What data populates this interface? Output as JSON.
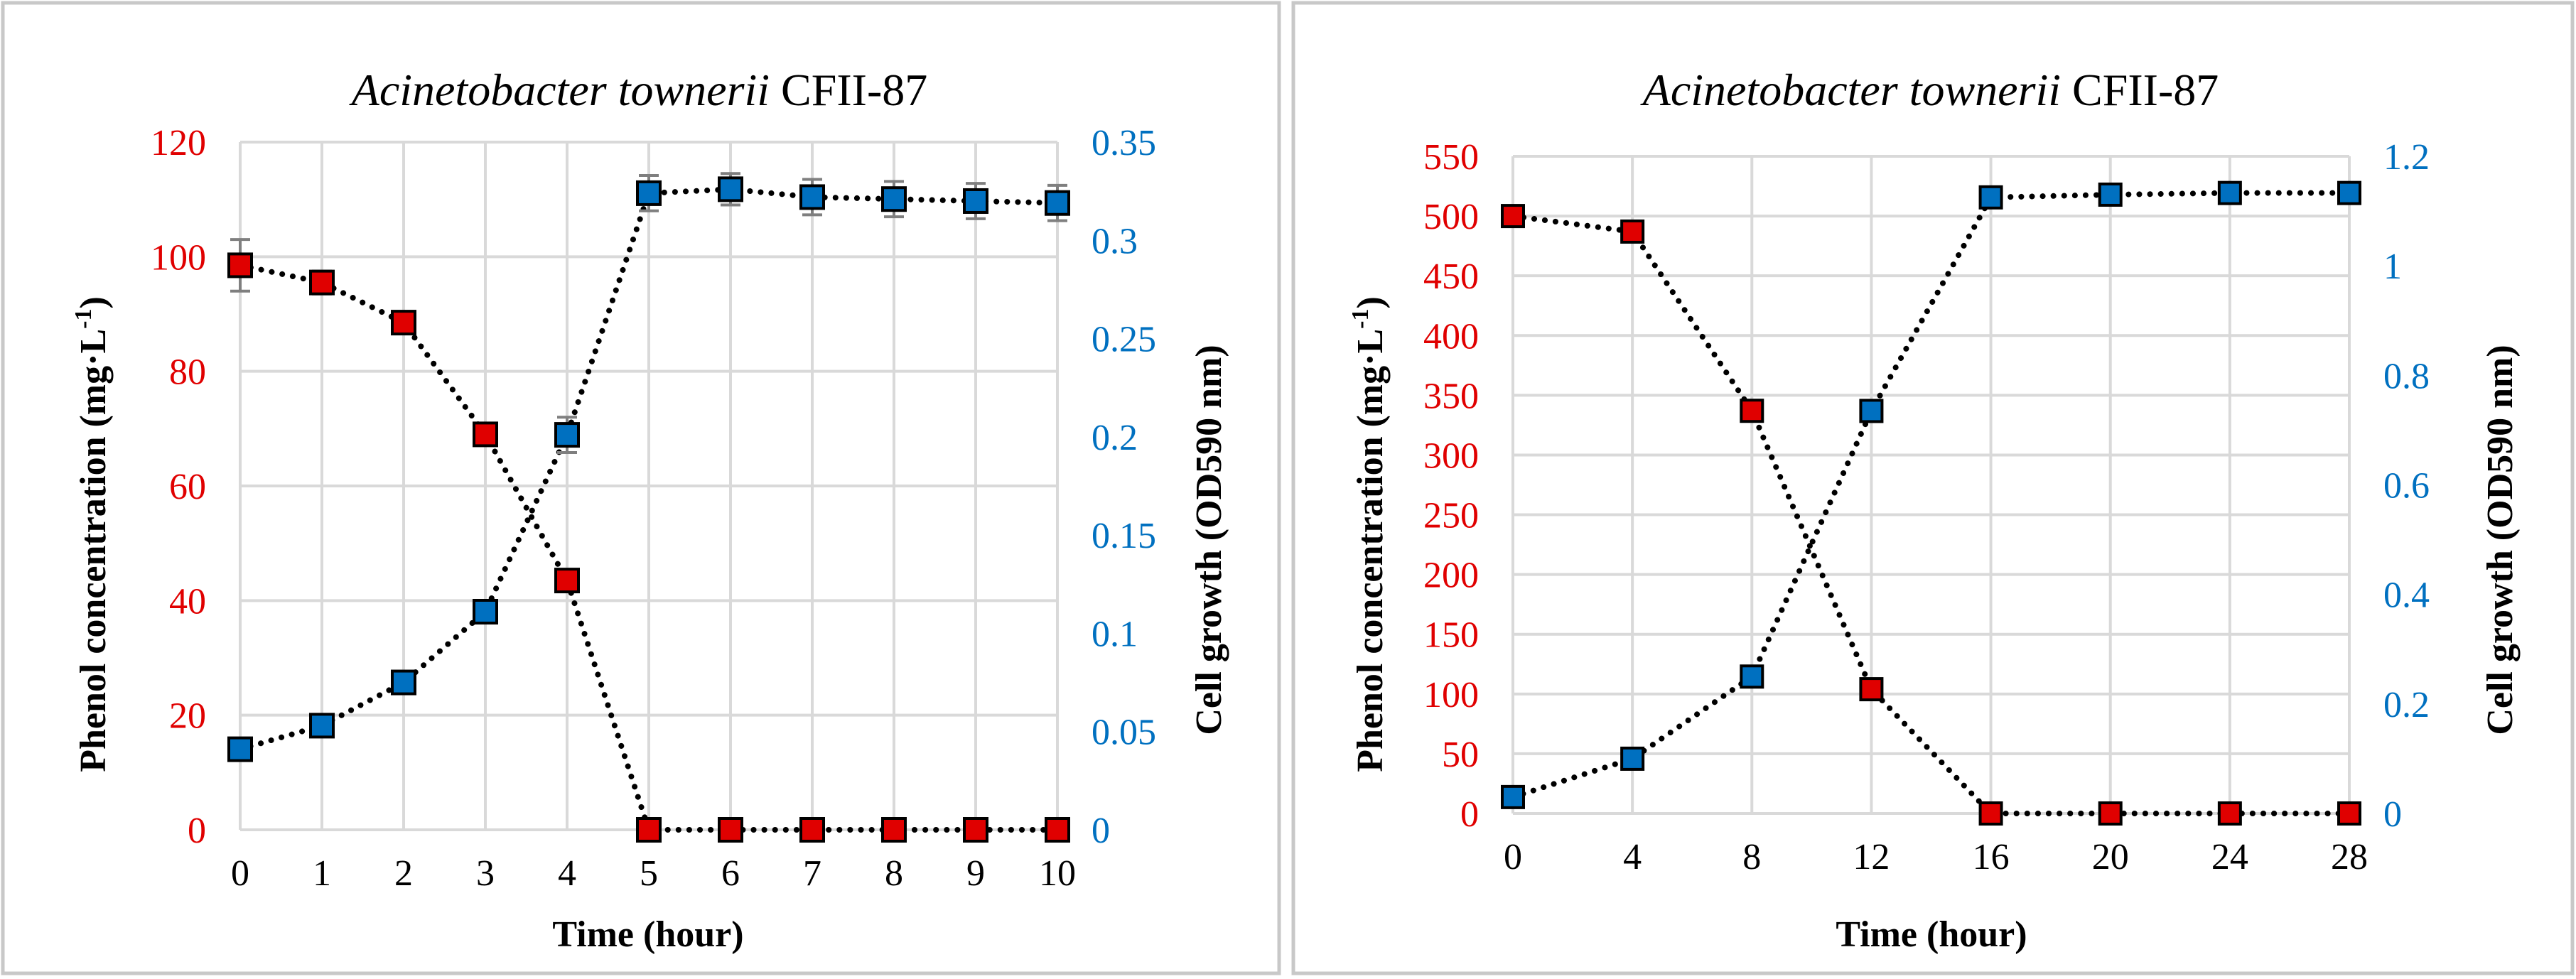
{
  "chart_data": [
    {
      "type": "line",
      "title_italic": "Acinetobacter townerii",
      "title_plain": " CFII-87",
      "xlabel": "Time (hour)",
      "ylabel_left_main": "Phenol concentration (mg·L",
      "ylabel_left_sup": "-1",
      "ylabel_left_tail": ")",
      "ylabel_right": "Cell growth (OD590 nm)",
      "x": [
        0,
        1,
        2,
        3,
        4,
        5,
        6,
        7,
        8,
        9,
        10
      ],
      "x_tick_labels": [
        "0",
        "1",
        "2",
        "3",
        "4",
        "5",
        "6",
        "7",
        "8",
        "9",
        "10"
      ],
      "xlim": [
        0,
        10
      ],
      "ylim_left": [
        0,
        120
      ],
      "y_left_tick_labels": [
        "0",
        "20",
        "40",
        "60",
        "80",
        "100",
        "120"
      ],
      "y_left_ticks": [
        0,
        20,
        40,
        60,
        80,
        100,
        120
      ],
      "ylim_right": [
        0,
        0.35
      ],
      "y_right_tick_labels": [
        "0",
        "0.05",
        "0.1",
        "0.15",
        "0.2",
        "0.25",
        "0.3",
        "0.35"
      ],
      "y_right_ticks": [
        0,
        0.05,
        0.1,
        0.15,
        0.2,
        0.25,
        0.3,
        0.35
      ],
      "series": [
        {
          "name": "Phenol concentration",
          "axis": "left",
          "color": "#e00000",
          "values": [
            98.5,
            95.5,
            88.5,
            69,
            43.5,
            0,
            0,
            0,
            0,
            0,
            0
          ],
          "errors": [
            4.5,
            2,
            1.5,
            1,
            1,
            0,
            0,
            0,
            0,
            0,
            0
          ]
        },
        {
          "name": "Cell growth",
          "axis": "right",
          "color": "#0070c0",
          "values": [
            0.041,
            0.053,
            0.075,
            0.111,
            0.201,
            0.324,
            0.326,
            0.322,
            0.321,
            0.32,
            0.319
          ],
          "errors": [
            0.003,
            0.003,
            0.003,
            0.003,
            0.009,
            0.009,
            0.008,
            0.009,
            0.009,
            0.009,
            0.009
          ]
        }
      ],
      "text_colors": {
        "left_ticks": "#e00000",
        "right_ticks": "#0070c0"
      }
    },
    {
      "type": "line",
      "title_italic": "Acinetobacter townerii",
      "title_plain": " CFII-87",
      "xlabel": "Time (hour)",
      "ylabel_left_main": "Phenol concentration (mg·L",
      "ylabel_left_sup": "-1",
      "ylabel_left_tail": ")",
      "ylabel_right": "Cell growth (OD590 nm)",
      "x": [
        0,
        4,
        8,
        12,
        16,
        20,
        24,
        28
      ],
      "x_tick_labels": [
        "0",
        "4",
        "8",
        "12",
        "16",
        "20",
        "24",
        "28"
      ],
      "xlim": [
        0,
        28
      ],
      "ylim_left": [
        0,
        550
      ],
      "y_left_tick_labels": [
        "0",
        "50",
        "100",
        "150",
        "200",
        "250",
        "300",
        "350",
        "400",
        "450",
        "500",
        "550"
      ],
      "y_left_ticks": [
        0,
        50,
        100,
        150,
        200,
        250,
        300,
        350,
        400,
        450,
        500,
        550
      ],
      "ylim_right": [
        0,
        1.2
      ],
      "y_right_tick_labels": [
        "0",
        "0.2",
        "0.4",
        "0.6",
        "0.8",
        "1",
        "1.2"
      ],
      "y_right_ticks": [
        0,
        0.2,
        0.4,
        0.6,
        0.8,
        1,
        1.2
      ],
      "series": [
        {
          "name": "Phenol concentration",
          "axis": "left",
          "color": "#e00000",
          "values": [
            500,
            487,
            337,
            104,
            0,
            0,
            0,
            0
          ],
          "errors": [
            0,
            0,
            0,
            0,
            0,
            0,
            0,
            0
          ]
        },
        {
          "name": "Cell growth",
          "axis": "right",
          "color": "#0070c0",
          "values": [
            0.03,
            0.1,
            0.25,
            0.735,
            1.125,
            1.13,
            1.133,
            1.133
          ],
          "errors": [
            0,
            0,
            0,
            0,
            0,
            0,
            0,
            0
          ]
        }
      ],
      "text_colors": {
        "left_ticks": "#e00000",
        "right_ticks": "#0070c0"
      }
    }
  ]
}
